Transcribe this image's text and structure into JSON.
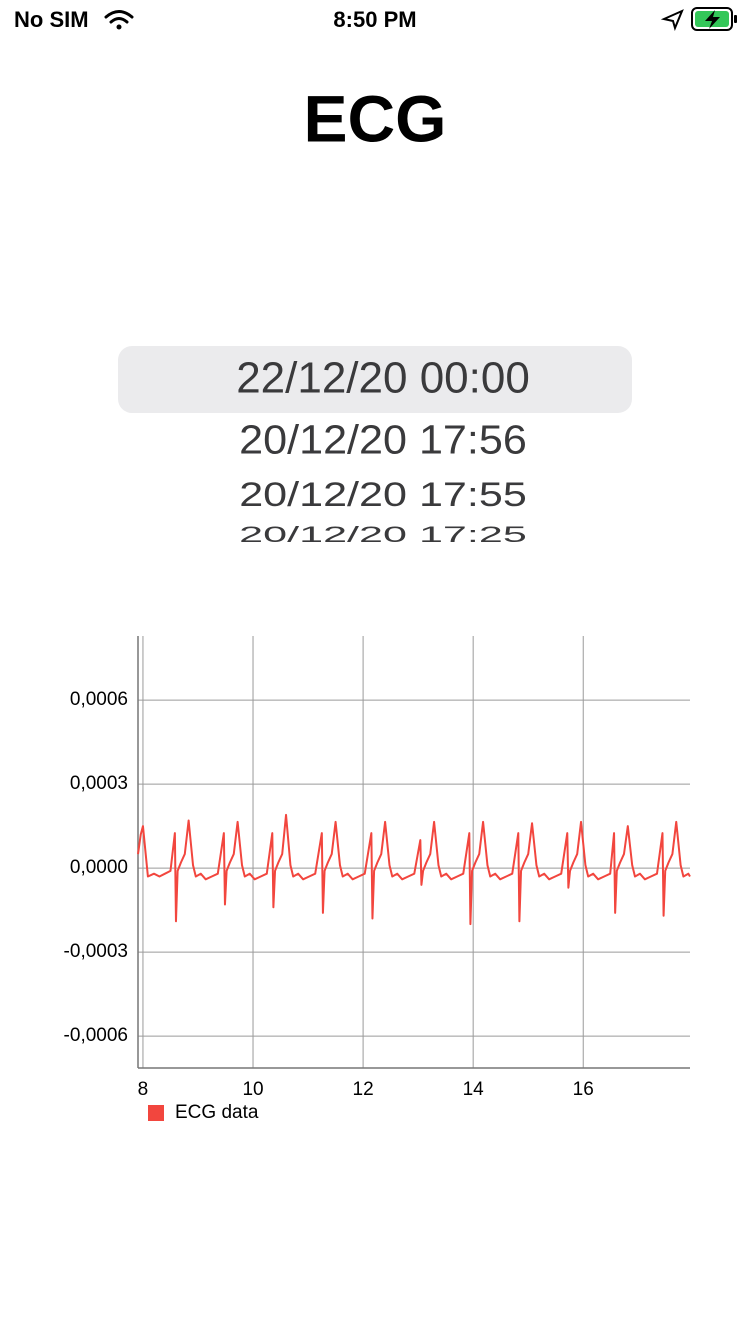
{
  "status_bar": {
    "carrier": "No SIM",
    "time": "8:50 PM"
  },
  "header": {
    "title": "ECG"
  },
  "picker": {
    "items": [
      "22/12/20 00:00",
      "20/12/20 17:56",
      "20/12/20 17:55",
      "20/12/20 17:25"
    ]
  },
  "chart_data": {
    "type": "line",
    "x": [
      7.91,
      7.96,
      8.0,
      8.05,
      8.09,
      8.2,
      8.3,
      8.4,
      8.5,
      8.58,
      8.6,
      8.63,
      8.69,
      8.76,
      8.83,
      8.91,
      8.96,
      9.05,
      9.14,
      9.25,
      9.36,
      9.47,
      9.49,
      9.52,
      9.58,
      9.65,
      9.72,
      9.8,
      9.85,
      9.94,
      10.03,
      10.14,
      10.25,
      10.35,
      10.37,
      10.4,
      10.46,
      10.53,
      10.6,
      10.68,
      10.73,
      10.82,
      10.91,
      11.02,
      11.13,
      11.25,
      11.27,
      11.3,
      11.36,
      11.43,
      11.5,
      11.58,
      11.63,
      11.72,
      11.81,
      11.92,
      12.03,
      12.15,
      12.17,
      12.2,
      12.26,
      12.33,
      12.4,
      12.48,
      12.53,
      12.62,
      12.71,
      12.82,
      12.93,
      13.04,
      13.06,
      13.09,
      13.15,
      13.22,
      13.29,
      13.37,
      13.42,
      13.51,
      13.6,
      13.71,
      13.82,
      13.93,
      13.95,
      13.98,
      14.04,
      14.11,
      14.18,
      14.26,
      14.31,
      14.4,
      14.49,
      14.6,
      14.71,
      14.82,
      14.84,
      14.87,
      14.93,
      15.0,
      15.07,
      15.15,
      15.2,
      15.29,
      15.38,
      15.49,
      15.6,
      15.71,
      15.73,
      15.76,
      15.82,
      15.89,
      15.96,
      16.04,
      16.09,
      16.18,
      16.27,
      16.38,
      16.49,
      16.56,
      16.58,
      16.61,
      16.67,
      16.74,
      16.81,
      16.89,
      16.94,
      17.03,
      17.12,
      17.23,
      17.34,
      17.44,
      17.46,
      17.49,
      17.55,
      17.62,
      17.69,
      17.77,
      17.82,
      17.91,
      17.94
    ],
    "series": [
      {
        "name": "ECG data",
        "color": "#f2463e",
        "values": [
          5e-05,
          0.00012,
          0.00015,
          5e-05,
          -3e-05,
          -2e-05,
          -3e-05,
          -2e-05,
          -1e-05,
          0.000125,
          -0.00019,
          -1e-05,
          2e-05,
          5e-05,
          0.00017,
          1e-05,
          -3e-05,
          -2e-05,
          -4e-05,
          -3e-05,
          -2e-05,
          0.000125,
          -0.00013,
          -1e-05,
          2e-05,
          5e-05,
          0.000165,
          1e-05,
          -3e-05,
          -2e-05,
          -4e-05,
          -3e-05,
          -2e-05,
          0.000125,
          -0.00014,
          -1e-05,
          2e-05,
          5e-05,
          0.00019,
          1e-05,
          -3e-05,
          -2e-05,
          -4e-05,
          -3e-05,
          -2e-05,
          0.000125,
          -0.00016,
          -1e-05,
          2e-05,
          5e-05,
          0.000165,
          1e-05,
          -3e-05,
          -2e-05,
          -4e-05,
          -3e-05,
          -2e-05,
          0.000125,
          -0.00018,
          -1e-05,
          2e-05,
          5e-05,
          0.000165,
          1e-05,
          -3e-05,
          -2e-05,
          -4e-05,
          -3e-05,
          -2e-05,
          0.0001,
          -6e-05,
          -1e-05,
          2e-05,
          5e-05,
          0.000165,
          1e-05,
          -3e-05,
          -2e-05,
          -4e-05,
          -3e-05,
          -2e-05,
          0.000125,
          -0.0002,
          -1e-05,
          2e-05,
          5e-05,
          0.000165,
          1e-05,
          -3e-05,
          -2e-05,
          -4e-05,
          -3e-05,
          -2e-05,
          0.000125,
          -0.00019,
          -1e-05,
          2e-05,
          5e-05,
          0.00016,
          1e-05,
          -3e-05,
          -2e-05,
          -4e-05,
          -3e-05,
          -2e-05,
          0.000125,
          -7e-05,
          -1e-05,
          2e-05,
          5e-05,
          0.000165,
          1e-05,
          -3e-05,
          -2e-05,
          -4e-05,
          -3e-05,
          -2e-05,
          0.000125,
          -0.00016,
          -1e-05,
          2e-05,
          5e-05,
          0.00015,
          1e-05,
          -3e-05,
          -2e-05,
          -4e-05,
          -3e-05,
          -2e-05,
          0.000125,
          -0.00017,
          -1e-05,
          2e-05,
          5e-05,
          0.000165,
          1e-05,
          -3e-05,
          -2e-05,
          -3e-05
        ]
      }
    ],
    "xlim": [
      7.91,
      17.94
    ],
    "xticks": [
      8,
      10,
      12,
      14,
      16
    ],
    "ylim": [
      -0.000714,
      0.000829
    ],
    "yticks": [
      {
        "value": -0.0006,
        "label": "-0,0006"
      },
      {
        "value": -0.0003,
        "label": "-0,0003"
      },
      {
        "value": 0,
        "label": "0,0000"
      },
      {
        "value": 0.0003,
        "label": "0,0003"
      },
      {
        "value": 0.0006,
        "label": "0,0006"
      }
    ],
    "grid": true,
    "legend": "bottom-left"
  }
}
